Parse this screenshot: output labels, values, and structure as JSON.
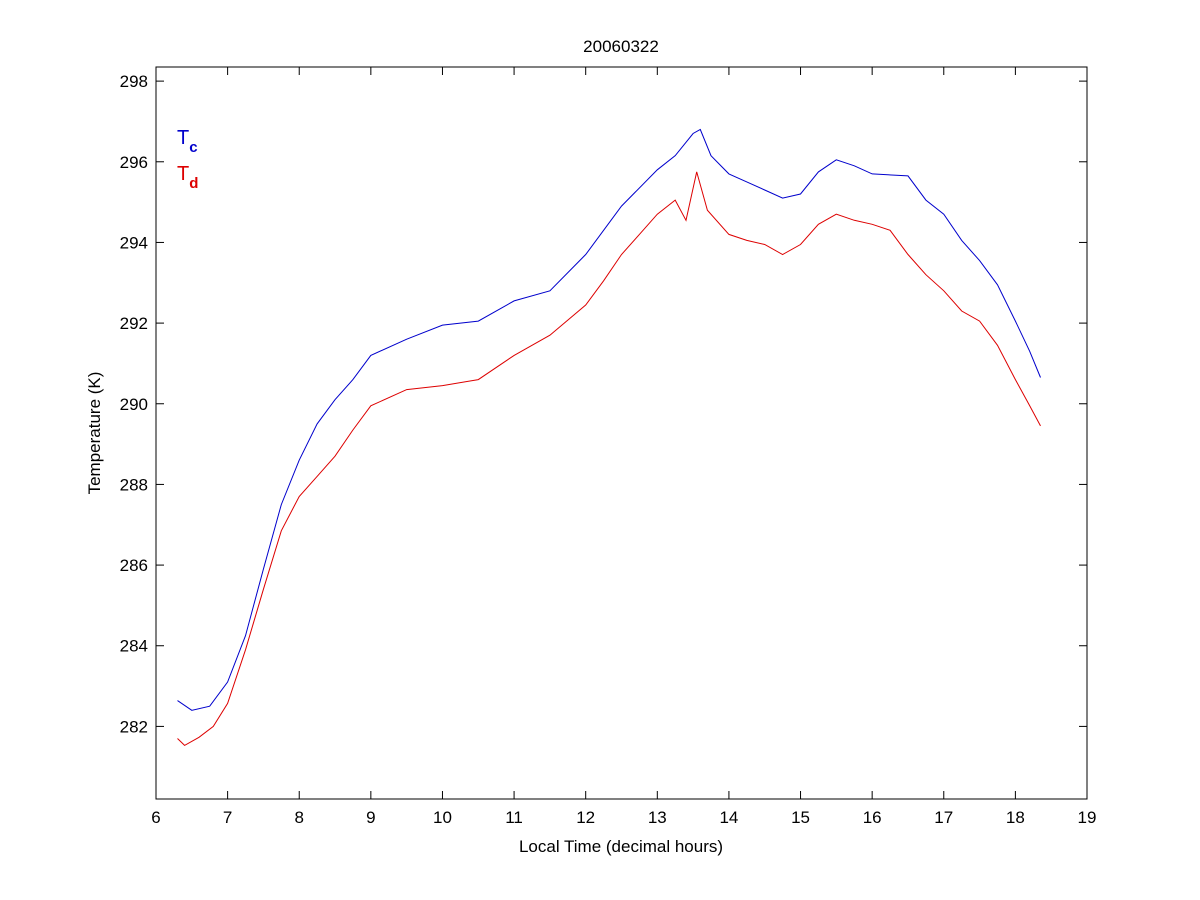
{
  "chart_data": {
    "type": "line",
    "title": "20060322",
    "xlabel": "Local Time (decimal hours)",
    "ylabel": "Temperature (K)",
    "xlim": [
      6,
      19
    ],
    "ylim": [
      280.2,
      298.35
    ],
    "xticks": [
      6,
      7,
      8,
      9,
      10,
      11,
      12,
      13,
      14,
      15,
      16,
      17,
      18,
      19
    ],
    "yticks": [
      282,
      284,
      286,
      288,
      290,
      292,
      294,
      296,
      298
    ],
    "grid": false,
    "legend": {
      "placement": "top-left",
      "entries": [
        {
          "main": "T",
          "sub": "c",
          "color": "#0000cc"
        },
        {
          "main": "T",
          "sub": "d",
          "color": "#dd0000"
        }
      ]
    },
    "series": [
      {
        "name": "Tc",
        "color": "#0000cc",
        "x": [
          6.3,
          6.5,
          6.75,
          7.0,
          7.25,
          7.5,
          7.75,
          8.0,
          8.25,
          8.5,
          8.75,
          9.0,
          9.5,
          10.0,
          10.5,
          11.0,
          11.5,
          12.0,
          12.25,
          12.5,
          13.0,
          13.25,
          13.5,
          13.6,
          13.75,
          14.0,
          14.25,
          14.5,
          14.75,
          15.0,
          15.25,
          15.5,
          15.75,
          16.0,
          16.5,
          16.75,
          17.0,
          17.25,
          17.5,
          17.75,
          18.0,
          18.2,
          18.35
        ],
        "y": [
          282.64,
          282.4,
          282.5,
          283.1,
          284.25,
          285.9,
          287.5,
          288.6,
          289.5,
          290.1,
          290.6,
          291.2,
          291.6,
          291.95,
          292.05,
          292.55,
          292.8,
          293.7,
          294.3,
          294.9,
          295.8,
          296.15,
          296.7,
          296.8,
          296.15,
          295.7,
          295.5,
          295.3,
          295.1,
          295.2,
          295.75,
          296.05,
          295.9,
          295.7,
          295.65,
          295.05,
          294.7,
          294.05,
          293.55,
          292.95,
          292.05,
          291.3,
          290.65
        ]
      },
      {
        "name": "Td",
        "color": "#dd0000",
        "x": [
          6.3,
          6.4,
          6.6,
          6.8,
          7.0,
          7.25,
          7.5,
          7.75,
          8.0,
          8.25,
          8.5,
          8.75,
          9.0,
          9.5,
          10.0,
          10.5,
          11.0,
          11.5,
          12.0,
          12.25,
          12.5,
          12.75,
          13.0,
          13.25,
          13.4,
          13.55,
          13.7,
          14.0,
          14.25,
          14.5,
          14.75,
          15.0,
          15.25,
          15.5,
          15.75,
          16.0,
          16.25,
          16.5,
          16.75,
          17.0,
          17.25,
          17.5,
          17.75,
          18.0,
          18.2,
          18.35
        ],
        "y": [
          281.7,
          281.53,
          281.73,
          282.0,
          282.57,
          283.9,
          285.4,
          286.85,
          287.7,
          288.2,
          288.7,
          289.35,
          289.95,
          290.35,
          290.45,
          290.6,
          291.2,
          291.7,
          292.45,
          293.05,
          293.7,
          294.2,
          294.7,
          295.05,
          294.55,
          295.75,
          294.8,
          294.2,
          294.05,
          293.95,
          293.7,
          293.95,
          294.45,
          294.7,
          294.55,
          294.45,
          294.3,
          293.7,
          293.2,
          292.8,
          292.3,
          292.05,
          291.45,
          290.6,
          289.95,
          289.45
        ]
      }
    ]
  }
}
